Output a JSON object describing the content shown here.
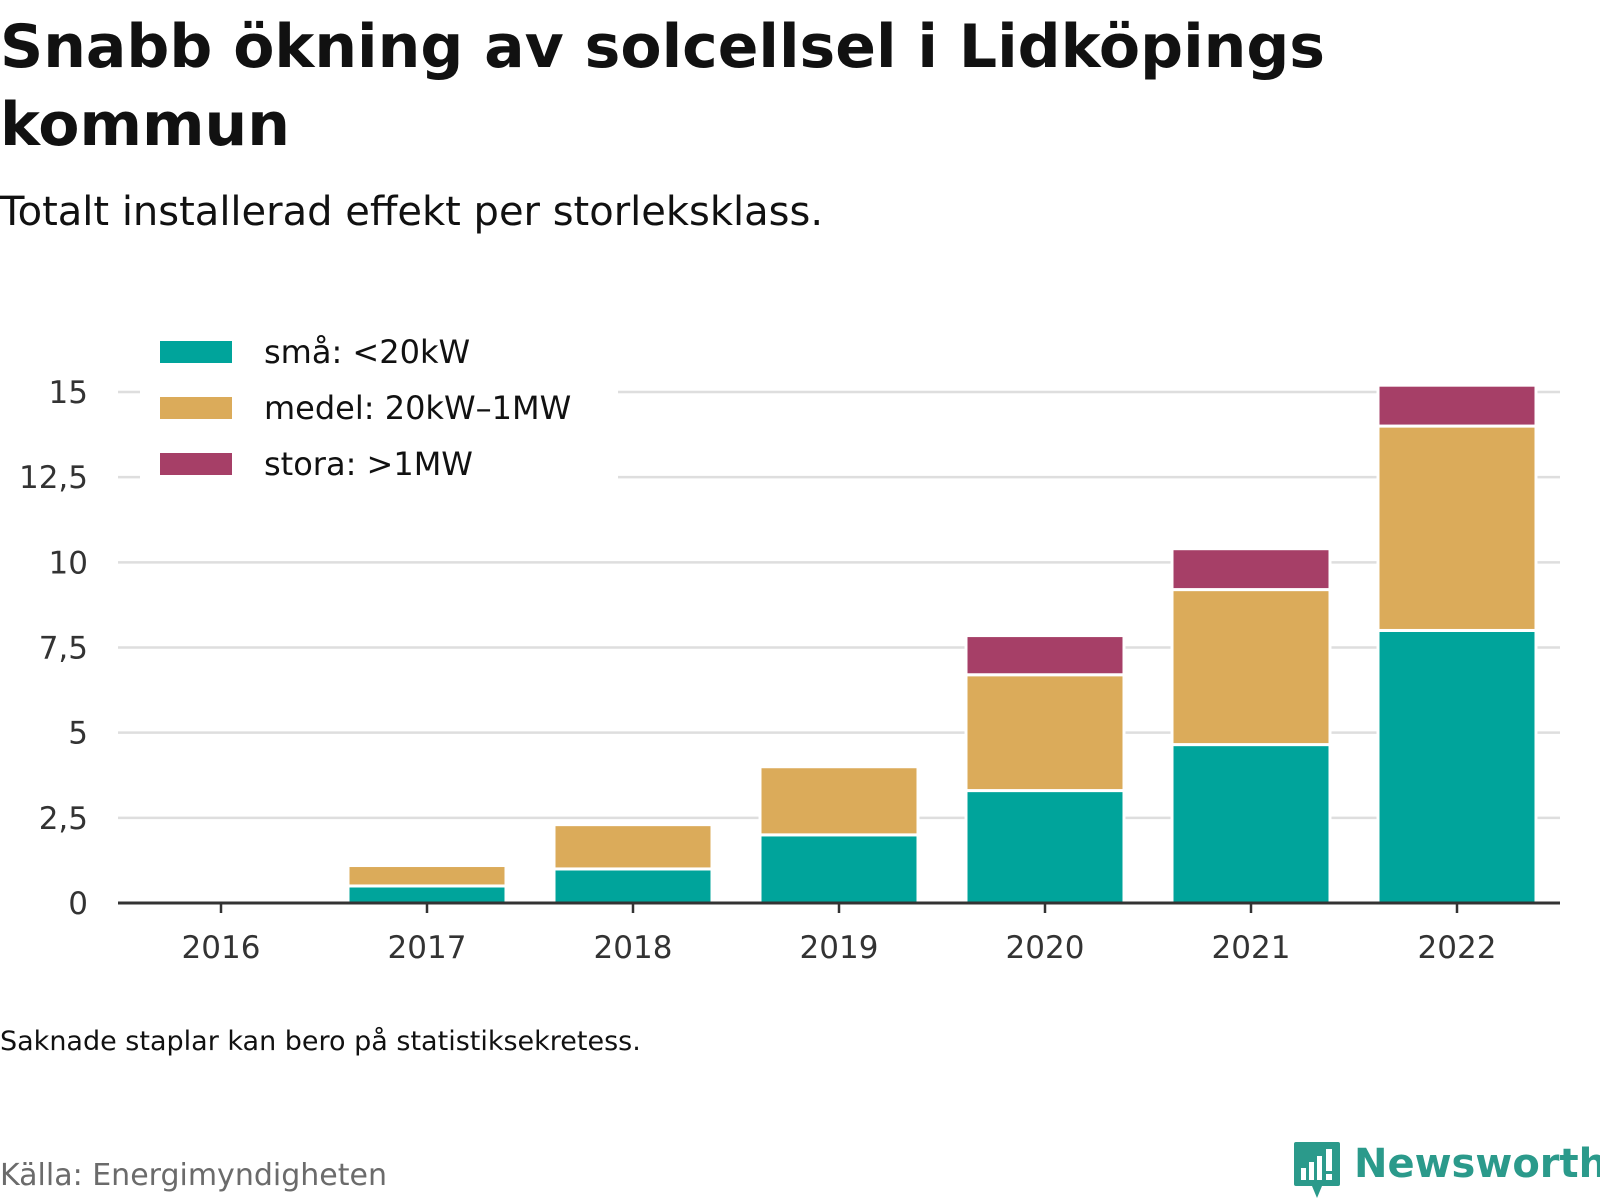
{
  "header": {
    "title": "Snabb ökning av solcellsel i Lidköpings kommun",
    "subtitle": "Totalt installerad effekt per storleksklass."
  },
  "footer": {
    "note": "Saknade staplar kan bero på statistiksekretess.",
    "source": "Källa: Energimyndigheten",
    "brand": "Newsworthy"
  },
  "chart_data": {
    "type": "bar",
    "stacked": true,
    "categories": [
      "2016",
      "2017",
      "2018",
      "2019",
      "2020",
      "2021",
      "2022"
    ],
    "series": [
      {
        "name": "små: <20kW",
        "color": "#00a49b",
        "values": [
          0,
          0.5,
          1.0,
          2.0,
          3.3,
          4.65,
          8.0
        ]
      },
      {
        "name": "medel: 20kW–1MW",
        "color": "#dbab5a",
        "values": [
          0,
          0.6,
          1.3,
          2.0,
          3.4,
          4.55,
          6.0
        ]
      },
      {
        "name": "stora: >1MW",
        "color": "#a63f67",
        "values": [
          0,
          0,
          0,
          0,
          1.15,
          1.2,
          1.2
        ]
      }
    ],
    "yticks": [
      0,
      2.5,
      5,
      7.5,
      10,
      12.5,
      15
    ],
    "ytick_labels": [
      "0",
      "2,5",
      "5",
      "7,5",
      "10",
      "12,5",
      "15"
    ],
    "ylim": [
      0,
      15.6
    ],
    "grid": true,
    "legend": "top-left"
  }
}
